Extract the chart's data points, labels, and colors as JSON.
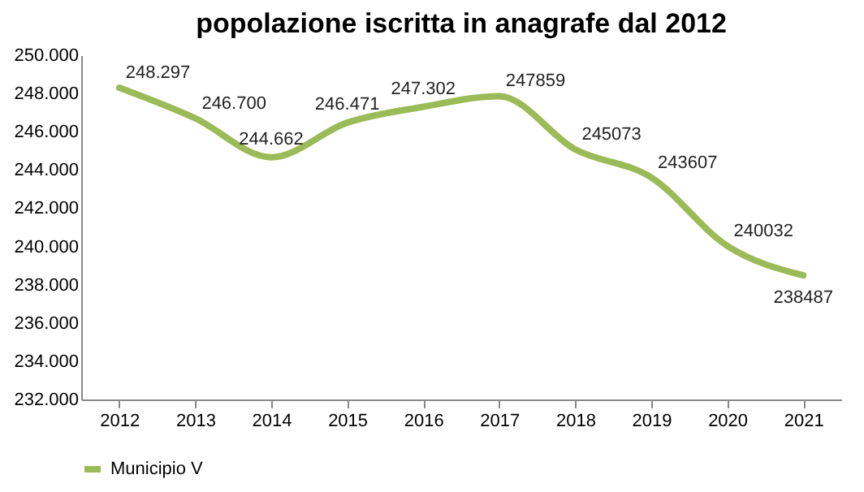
{
  "chart_data": {
    "type": "line",
    "title": "popolazione iscritta in anagrafe dal 2012",
    "categories": [
      "2012",
      "2013",
      "2014",
      "2015",
      "2016",
      "2017",
      "2018",
      "2019",
      "2020",
      "2021"
    ],
    "series": [
      {
        "name": "Municipio V",
        "color": "#9bbb59",
        "values": [
          248297,
          246700,
          244662,
          246471,
          247302,
          247859,
          245073,
          243607,
          240032,
          238487
        ],
        "value_labels": [
          "248.297",
          "246.700",
          "244.662",
          "246.471",
          "247.302",
          "247859",
          "245073",
          "243607",
          "240032",
          "238487"
        ]
      }
    ],
    "ylim": [
      232000,
      250000
    ],
    "yticks": [
      {
        "value": 232000,
        "label": "232.000"
      },
      {
        "value": 234000,
        "label": "234.000"
      },
      {
        "value": 236000,
        "label": "236.000"
      },
      {
        "value": 238000,
        "label": "238.000"
      },
      {
        "value": 240000,
        "label": "240.000"
      },
      {
        "value": 242000,
        "label": "242.000"
      },
      {
        "value": 244000,
        "label": "244.000"
      },
      {
        "value": 246000,
        "label": "246.000"
      },
      {
        "value": 248000,
        "label": "248.000"
      },
      {
        "value": 250000,
        "label": "250.000"
      }
    ],
    "legend": "bottom",
    "grid": false,
    "marker": "none",
    "line_style": "solid"
  }
}
